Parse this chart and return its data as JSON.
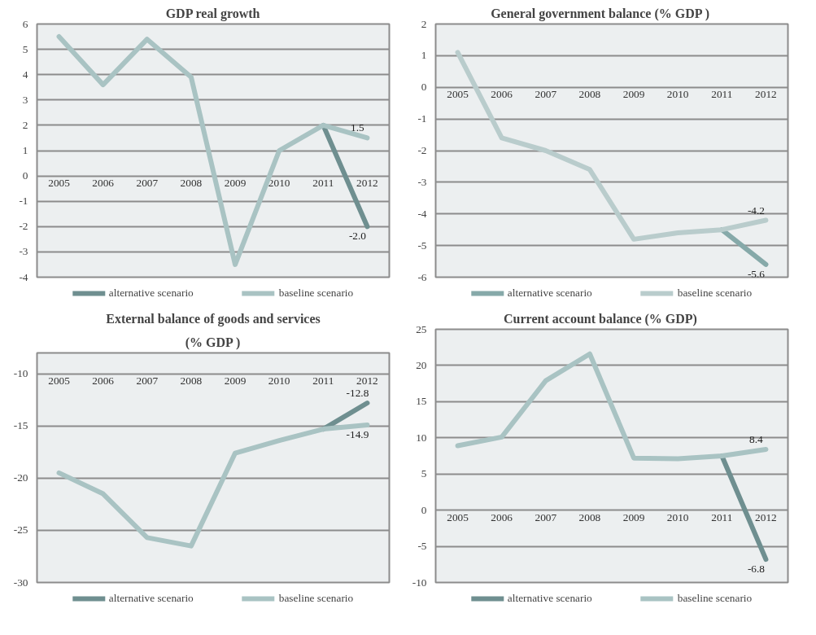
{
  "chart_data": [
    {
      "type": "line",
      "title": "GDP real growth",
      "categories": [
        "2005",
        "2006",
        "2007",
        "2008",
        "2009",
        "2010",
        "2011",
        "2012"
      ],
      "ylim": [
        -4,
        6
      ],
      "yticks": [
        -4,
        -3,
        -2,
        -1,
        0,
        1,
        2,
        3,
        4,
        5,
        6
      ],
      "grid": "y",
      "legend": "bottom",
      "series": [
        {
          "name": "alternative scenario",
          "color": "#6f8f90",
          "values": [
            null,
            null,
            null,
            null,
            null,
            null,
            2.0,
            -2.0
          ],
          "value_labels": [
            null,
            null,
            null,
            null,
            null,
            null,
            null,
            "-2.0"
          ]
        },
        {
          "name": "baseline scenario",
          "color": "#a9c3c3",
          "values": [
            5.5,
            3.6,
            5.4,
            3.9,
            -3.5,
            1.0,
            2.0,
            1.5
          ],
          "value_labels": [
            null,
            null,
            null,
            null,
            null,
            null,
            null,
            "1.5"
          ]
        }
      ]
    },
    {
      "type": "line",
      "title": "General government balance        (% GDP )",
      "categories": [
        "2005",
        "2006",
        "2007",
        "2008",
        "2009",
        "2010",
        "2011",
        "2012"
      ],
      "ylim": [
        -6,
        2
      ],
      "yticks": [
        -6,
        -5,
        -4,
        -3,
        -2,
        -1,
        0,
        1,
        2
      ],
      "grid": "y",
      "legend": "bottom",
      "series": [
        {
          "name": "alternative scenario",
          "color": "#86a9a9",
          "values": [
            null,
            null,
            null,
            null,
            null,
            null,
            -4.5,
            -5.6
          ],
          "value_labels": [
            null,
            null,
            null,
            null,
            null,
            null,
            null,
            "-5.6"
          ]
        },
        {
          "name": "baseline scenario",
          "color": "#b9cccc",
          "values": [
            1.1,
            -1.6,
            -2.0,
            -2.6,
            -4.8,
            -4.6,
            -4.5,
            -4.2
          ],
          "value_labels": [
            null,
            null,
            null,
            null,
            null,
            null,
            null,
            "-4.2"
          ]
        }
      ]
    },
    {
      "type": "line",
      "title": "External balance of goods and services",
      "subtitle": "(% GDP )",
      "categories": [
        "2005",
        "2006",
        "2007",
        "2008",
        "2009",
        "2010",
        "2011",
        "2012"
      ],
      "ylim": [
        -30,
        -8
      ],
      "yticks": [
        -30,
        -25,
        -20,
        -15,
        -10
      ],
      "grid": "y",
      "legend": "bottom",
      "series": [
        {
          "name": "alternative scenario",
          "color": "#6f8f90",
          "values": [
            null,
            null,
            null,
            null,
            null,
            null,
            -15.3,
            -12.8
          ],
          "value_labels": [
            null,
            null,
            null,
            null,
            null,
            null,
            null,
            "-12.8"
          ]
        },
        {
          "name": "baseline scenario",
          "color": "#a9c3c3",
          "values": [
            -19.5,
            -21.5,
            -25.7,
            -26.5,
            -17.6,
            -16.4,
            -15.3,
            -14.9
          ],
          "value_labels": [
            null,
            null,
            null,
            null,
            null,
            null,
            null,
            "-14.9"
          ]
        }
      ]
    },
    {
      "type": "line",
      "title": "Current account balance        (% GDP)",
      "categories": [
        "2005",
        "2006",
        "2007",
        "2008",
        "2009",
        "2010",
        "2011",
        "2012"
      ],
      "ylim": [
        -10,
        25
      ],
      "yticks": [
        -10,
        -5,
        0,
        5,
        10,
        15,
        20,
        25
      ],
      "grid": "y",
      "legend": "bottom",
      "series": [
        {
          "name": "alternative scenario",
          "color": "#6f8f90",
          "values": [
            null,
            null,
            null,
            null,
            null,
            null,
            7.5,
            -6.8
          ],
          "value_labels": [
            null,
            null,
            null,
            null,
            null,
            null,
            null,
            "-6.8"
          ]
        },
        {
          "name": "baseline scenario",
          "color": "#a9c3c3",
          "values": [
            8.9,
            10.1,
            17.9,
            21.6,
            7.2,
            7.1,
            7.5,
            8.4
          ],
          "value_labels": [
            null,
            null,
            null,
            null,
            null,
            null,
            null,
            "8.4"
          ]
        }
      ]
    }
  ]
}
